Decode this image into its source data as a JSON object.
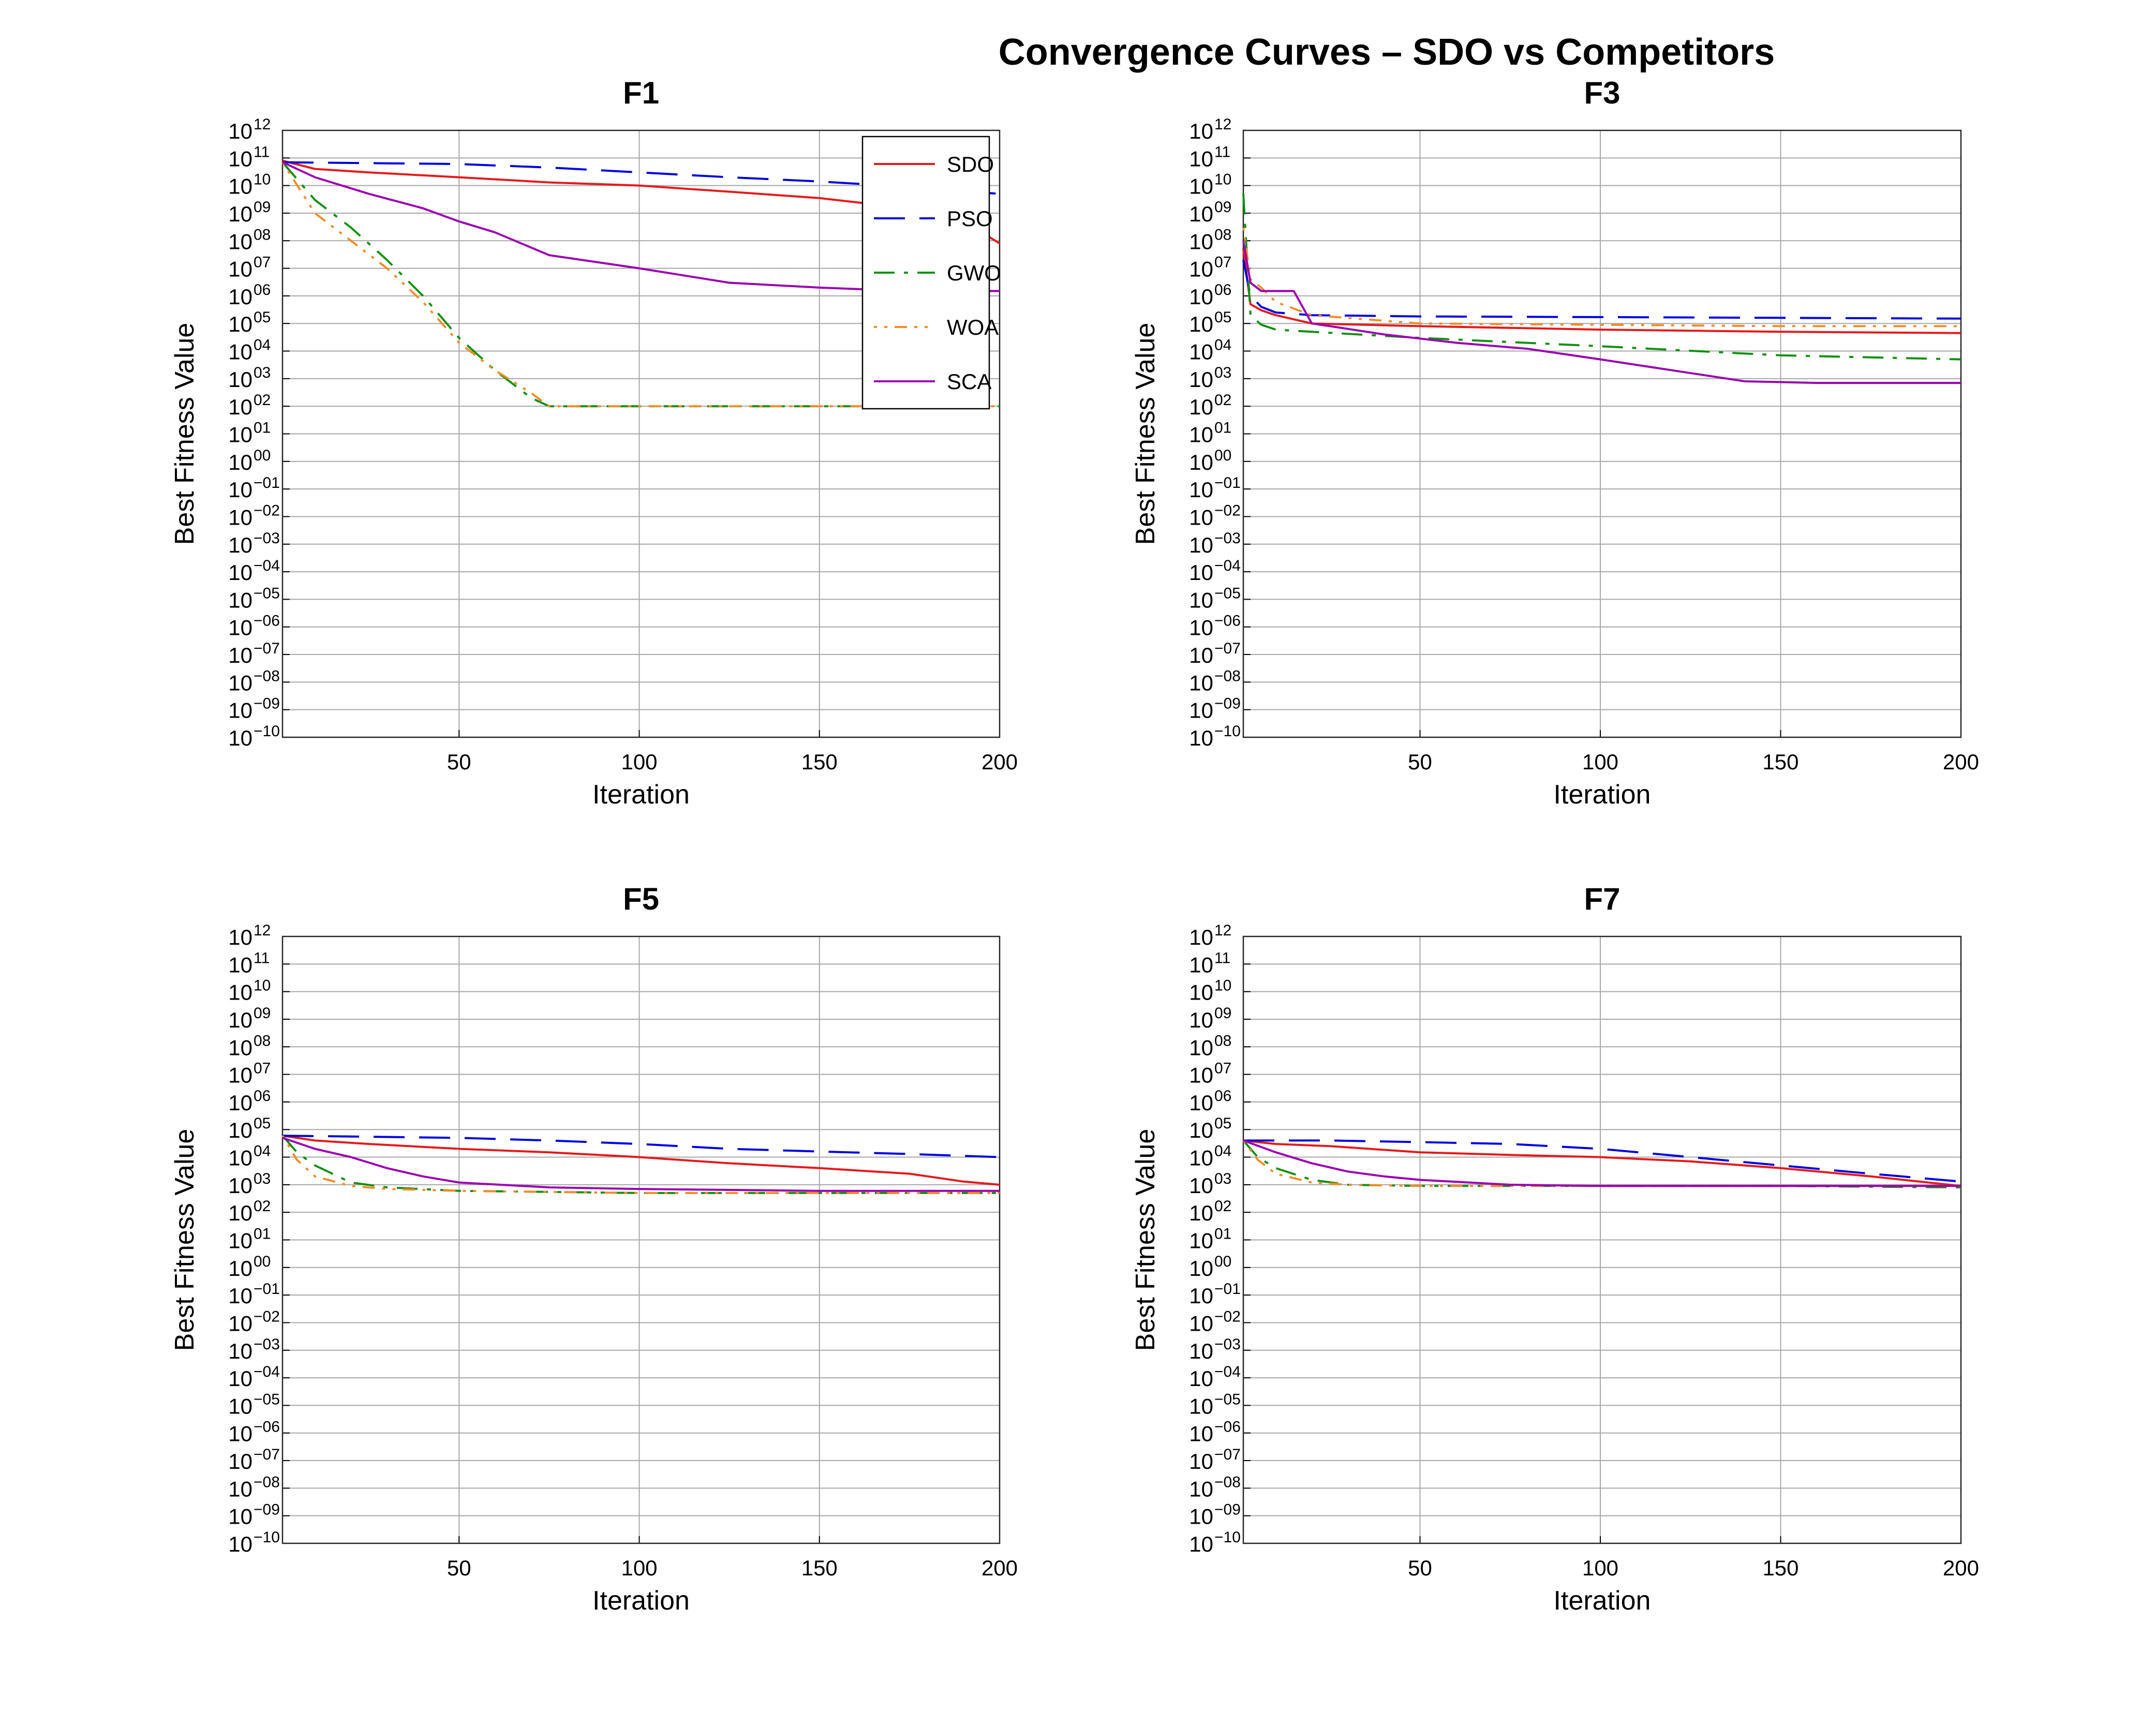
{
  "title": "Convergence Curves – SDO vs Competitors",
  "colors": {
    "SDO": "#e41a1c",
    "PSO": "#0000e0",
    "GWO": "#109010",
    "WOA": "#f28c28",
    "SCA": "#9a00b0"
  },
  "chart_data": [
    {
      "type": "line",
      "title": "F1",
      "xlabel": "Iteration",
      "ylabel": "Best Fitness Value",
      "xlim": [
        1,
        200
      ],
      "xticks": [
        50,
        100,
        150,
        200
      ],
      "ylim": [
        1e-10,
        1000000000000.0
      ],
      "yscale": "log",
      "grid": true,
      "legend": "top-right",
      "series": [
        {
          "name": "SDO",
          "x": [
            1,
            10,
            25,
            50,
            75,
            100,
            125,
            150,
            175,
            190,
            200
          ],
          "y": [
            80000000000.0,
            40000000000.0,
            30000000000.0,
            20000000000.0,
            13000000000.0,
            10000000000.0,
            6000000000.0,
            3500000000.0,
            1500000000.0,
            500000000.0,
            80000000.0
          ]
        },
        {
          "name": "PSO",
          "x": [
            1,
            25,
            50,
            75,
            100,
            125,
            150,
            175,
            200
          ],
          "y": [
            70000000000.0,
            65000000000.0,
            60000000000.0,
            45000000000.0,
            30000000000.0,
            20000000000.0,
            14000000000.0,
            9000000000.0,
            5000000000.0
          ]
        },
        {
          "name": "GWO",
          "x": [
            1,
            10,
            20,
            30,
            40,
            50,
            60,
            70,
            75,
            100,
            150,
            200
          ],
          "y": [
            70000000000.0,
            3000000000.0,
            300000000.0,
            20000000.0,
            1000000.0,
            30000.0,
            2000.0,
            200.0,
            100.0,
            100.0,
            100.0,
            100.0
          ]
        },
        {
          "name": "WOA",
          "x": [
            1,
            10,
            20,
            30,
            40,
            50,
            60,
            70,
            75,
            100,
            150,
            200
          ],
          "y": [
            70000000000.0,
            1000000000.0,
            100000000.0,
            10000000.0,
            600000.0,
            20000.0,
            2000.0,
            300.0,
            100.0,
            100.0,
            100.0,
            100.0
          ]
        },
        {
          "name": "SCA",
          "x": [
            1,
            10,
            25,
            40,
            50,
            60,
            75,
            100,
            125,
            150,
            175,
            200
          ],
          "y": [
            70000000000.0,
            20000000000.0,
            5000000000.0,
            1500000000.0,
            500000000.0,
            200000000.0,
            30000000.0,
            10000000.0,
            3000000.0,
            2000000.0,
            1500000.0,
            1500000.0
          ]
        }
      ]
    },
    {
      "type": "line",
      "title": "F3",
      "xlabel": "Iteration",
      "ylabel": "Best Fitness Value",
      "xlim": [
        1,
        200
      ],
      "xticks": [
        50,
        100,
        150,
        200
      ],
      "ylim": [
        1e-10,
        1000000000000.0
      ],
      "yscale": "log",
      "grid": true,
      "series": [
        {
          "name": "SDO",
          "x": [
            1,
            3,
            6,
            10,
            20,
            50,
            100,
            150,
            200
          ],
          "y": [
            50000000.0,
            500000.0,
            300000.0,
            200000.0,
            100000.0,
            80000.0,
            60000.0,
            50000.0,
            45000.0
          ]
        },
        {
          "name": "PSO",
          "x": [
            1,
            3,
            6,
            10,
            20,
            50,
            100,
            150,
            200
          ],
          "y": [
            20000000.0,
            1000000.0,
            400000.0,
            250000.0,
            200000.0,
            180000.0,
            170000.0,
            160000.0,
            150000.0
          ]
        },
        {
          "name": "GWO",
          "x": [
            1,
            3,
            6,
            10,
            20,
            50,
            100,
            150,
            200
          ],
          "y": [
            5000000000.0,
            200000.0,
            90000.0,
            60000.0,
            50000.0,
            30000.0,
            15000.0,
            7000.0,
            5000.0
          ]
        },
        {
          "name": "WOA",
          "x": [
            1,
            3,
            6,
            10,
            20,
            50,
            100,
            150,
            200
          ],
          "y": [
            300000000.0,
            4000000.0,
            2000000.0,
            600000.0,
            200000.0,
            100000.0,
            90000.0,
            80000.0,
            80000.0
          ]
        },
        {
          "name": "SCA",
          "x": [
            1,
            3,
            6,
            10,
            15,
            20,
            25,
            40,
            60,
            80,
            100,
            120,
            140,
            160,
            200
          ],
          "y": [
            100000000.0,
            3000000.0,
            1500000.0,
            1500000.0,
            1500000.0,
            100000.0,
            80000.0,
            40000.0,
            20000.0,
            12000.0,
            5000.0,
            2000.0,
            800.0,
            700.0,
            700.0
          ]
        }
      ]
    },
    {
      "type": "line",
      "title": "F5",
      "xlabel": "Iteration",
      "ylabel": "Best Fitness Value",
      "xlim": [
        1,
        200
      ],
      "xticks": [
        50,
        100,
        150,
        200
      ],
      "ylim": [
        1e-10,
        1000000000000.0
      ],
      "yscale": "log",
      "grid": true,
      "series": [
        {
          "name": "SDO",
          "x": [
            1,
            10,
            25,
            50,
            75,
            100,
            125,
            150,
            175,
            190,
            200
          ],
          "y": [
            60000.0,
            40000.0,
            30000.0,
            20000.0,
            15000.0,
            10000.0,
            6000.0,
            4000.0,
            2500.0,
            1300.0,
            1000.0
          ]
        },
        {
          "name": "PSO",
          "x": [
            1,
            25,
            50,
            75,
            100,
            125,
            150,
            175,
            200
          ],
          "y": [
            60000.0,
            55000.0,
            50000.0,
            40000.0,
            30000.0,
            20000.0,
            16000.0,
            13000.0,
            10000.0
          ]
        },
        {
          "name": "GWO",
          "x": [
            1,
            5,
            10,
            20,
            30,
            50,
            100,
            150,
            200
          ],
          "y": [
            60000.0,
            15000.0,
            5000.0,
            1200.0,
            800.0,
            600.0,
            500.0,
            500.0,
            500.0
          ]
        },
        {
          "name": "WOA",
          "x": [
            1,
            5,
            10,
            20,
            30,
            50,
            100,
            150,
            200
          ],
          "y": [
            60000.0,
            8000.0,
            2000.0,
            900.0,
            700.0,
            600.0,
            500.0,
            500.0,
            500.0
          ]
        },
        {
          "name": "SCA",
          "x": [
            1,
            10,
            20,
            30,
            40,
            50,
            75,
            100,
            150,
            200
          ],
          "y": [
            50000.0,
            20000.0,
            10000.0,
            4000.0,
            2000.0,
            1200.0,
            800.0,
            700.0,
            600.0,
            600.0
          ]
        }
      ]
    },
    {
      "type": "line",
      "title": "F7",
      "xlabel": "Iteration",
      "ylabel": "Best Fitness Value",
      "xlim": [
        1,
        200
      ],
      "xticks": [
        50,
        100,
        150,
        200
      ],
      "ylim": [
        1e-10,
        1000000000000.0
      ],
      "yscale": "log",
      "grid": true,
      "series": [
        {
          "name": "SDO",
          "x": [
            1,
            10,
            25,
            50,
            75,
            100,
            125,
            150,
            175,
            200
          ],
          "y": [
            40000.0,
            30000.0,
            25000.0,
            15000.0,
            12000.0,
            10000.0,
            7000.0,
            4000.0,
            2000.0,
            900.0
          ]
        },
        {
          "name": "PSO",
          "x": [
            1,
            25,
            50,
            75,
            100,
            125,
            150,
            175,
            200
          ],
          "y": [
            40000.0,
            40000.0,
            35000.0,
            30000.0,
            20000.0,
            10000.0,
            5000.0,
            2500.0,
            1300.0
          ]
        },
        {
          "name": "GWO",
          "x": [
            1,
            5,
            10,
            20,
            30,
            50,
            100,
            150,
            200
          ],
          "y": [
            40000.0,
            10000.0,
            4000.0,
            1500.0,
            1000.0,
            900.0,
            900.0,
            900.0,
            800.0
          ]
        },
        {
          "name": "WOA",
          "x": [
            1,
            5,
            10,
            20,
            30,
            50,
            100,
            150,
            200
          ],
          "y": [
            40000.0,
            8000.0,
            2500.0,
            1200.0,
            1000.0,
            900.0,
            900.0,
            900.0,
            900.0
          ]
        },
        {
          "name": "SCA",
          "x": [
            1,
            10,
            20,
            30,
            40,
            50,
            75,
            100,
            150,
            200
          ],
          "y": [
            40000.0,
            15000.0,
            6000.0,
            3000.0,
            2000.0,
            1500.0,
            1000.0,
            900.0,
            900.0,
            900.0
          ]
        }
      ]
    }
  ]
}
